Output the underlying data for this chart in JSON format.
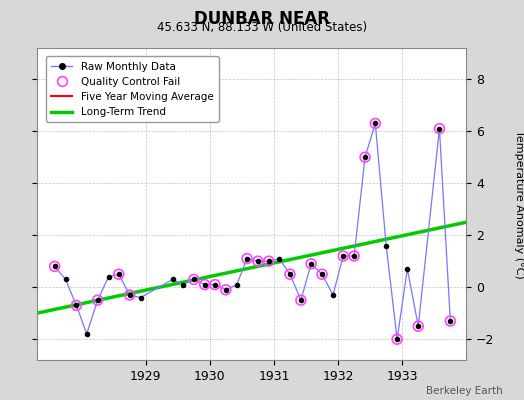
{
  "title": "DUNBAR NEAR",
  "subtitle": "45.633 N, 88.133 W (United States)",
  "credit": "Berkeley Earth",
  "ylabel": "Temperature Anomaly (°C)",
  "background_color": "#d8d8d8",
  "plot_bg_color": "#ffffff",
  "xlim": [
    1927.3,
    1934.0
  ],
  "ylim": [
    -2.8,
    9.2
  ],
  "yticks": [
    -2,
    0,
    2,
    4,
    6,
    8
  ],
  "xticks": [
    1929,
    1930,
    1931,
    1932,
    1933
  ],
  "raw_x": [
    1927.58,
    1927.75,
    1927.92,
    1928.08,
    1928.25,
    1928.42,
    1928.58,
    1928.75,
    1928.92,
    1929.42,
    1929.58,
    1929.75,
    1929.92,
    1930.08,
    1930.25,
    1930.42,
    1930.58,
    1930.75,
    1930.92,
    1931.08,
    1931.25,
    1931.42,
    1931.58,
    1931.75,
    1931.92,
    1932.08,
    1932.25,
    1932.42,
    1932.58,
    1932.75,
    1932.92,
    1933.08,
    1933.25,
    1933.58,
    1933.75
  ],
  "raw_y": [
    0.8,
    0.3,
    -0.7,
    -1.8,
    -0.5,
    0.4,
    0.5,
    -0.3,
    -0.4,
    0.3,
    0.1,
    0.3,
    0.1,
    0.1,
    -0.1,
    0.1,
    1.1,
    1.0,
    1.0,
    1.1,
    0.5,
    -0.5,
    0.9,
    0.5,
    -0.3,
    1.2,
    1.2,
    5.0,
    6.3,
    1.6,
    -2.0,
    0.7,
    -1.5,
    6.1,
    -1.3
  ],
  "qc_fail_x": [
    1927.58,
    1927.92,
    1928.25,
    1928.58,
    1928.75,
    1929.75,
    1929.92,
    1930.08,
    1930.25,
    1930.58,
    1930.75,
    1930.92,
    1931.25,
    1931.42,
    1931.58,
    1931.75,
    1932.08,
    1932.25,
    1932.42,
    1932.58,
    1932.92,
    1933.25,
    1933.58,
    1933.75
  ],
  "qc_fail_y": [
    0.8,
    -0.7,
    -0.5,
    0.5,
    -0.3,
    0.3,
    0.1,
    0.1,
    -0.1,
    1.1,
    1.0,
    1.0,
    0.5,
    -0.5,
    0.9,
    0.5,
    1.2,
    1.2,
    5.0,
    6.3,
    -2.0,
    -1.5,
    6.1,
    -1.3
  ],
  "trend_x": [
    1927.3,
    1934.0
  ],
  "trend_y": [
    -1.0,
    2.5
  ],
  "line_color": "#7777ff",
  "marker_color": "#000000",
  "qc_color": "#ff44ff",
  "trend_color": "#00cc00",
  "moving_avg_color": "#ff0000",
  "grid_color": "#bbbbbb"
}
